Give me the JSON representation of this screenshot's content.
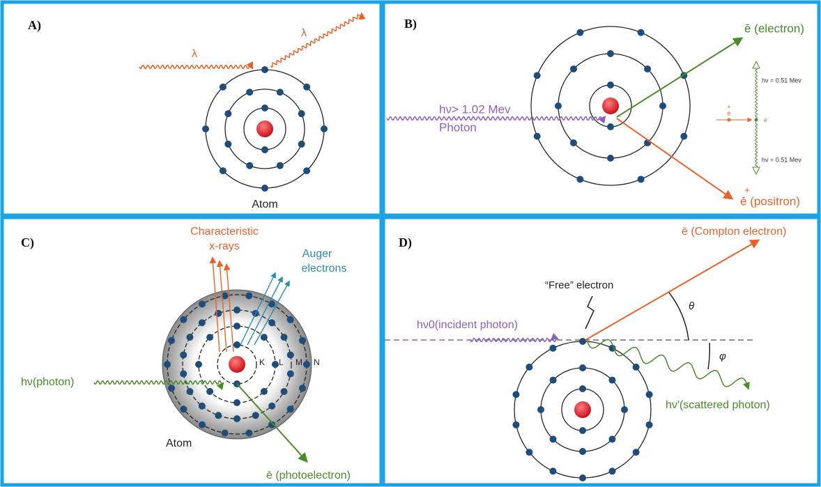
{
  "panels": {
    "a": {
      "label": "A)",
      "incident": "λ",
      "scattered": "λ",
      "atom": "Atom"
    },
    "b": {
      "label": "B)",
      "electron": "ē (electron)",
      "photon_energy": "hν> 1.02 Mev",
      "photon": "Photon",
      "positron_sign": "+",
      "positron": "ē (positron)",
      "inset_top": "hν = 0.51 Mev",
      "inset_bottom": "hν = 0.51 Mev",
      "inset_plus": "+",
      "inset_e_left": "e",
      "inset_e_right": "e"
    },
    "c": {
      "label": "C)",
      "characteristic": "Characteristic",
      "xrays": "x-rays",
      "auger": "Auger",
      "electrons": "electrons",
      "shell_k": "K",
      "shell_l": "L",
      "shell_m": "M",
      "shell_n": "N",
      "photon": "hν(photon)",
      "atom": "Atom",
      "photoelectron": "ē (photoelectron)"
    },
    "d": {
      "label": "D)",
      "compton": "ē (Compton electron)",
      "free": "“Free” electron",
      "theta": "θ",
      "phi": "φ",
      "incident": "hν0(incident photon)",
      "scattered": "hν′(scattered photon)"
    }
  }
}
